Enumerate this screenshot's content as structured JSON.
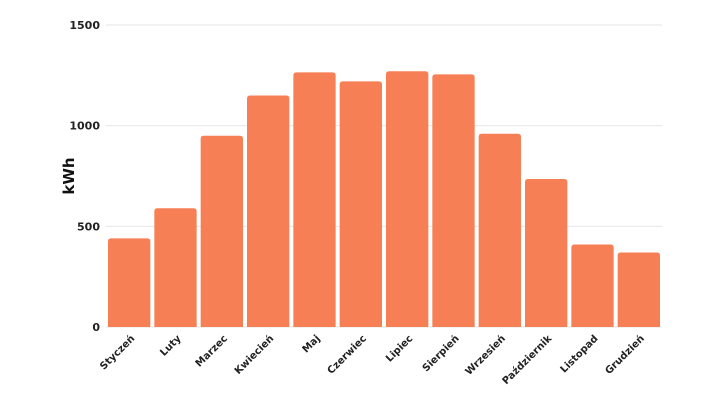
{
  "chart_data": {
    "type": "bar",
    "categories": [
      "Styczeń",
      "Luty",
      "Marzec",
      "Kwiecień",
      "Maj",
      "Czerwiec",
      "Lipiec",
      "Sierpień",
      "Wrzesień",
      "Październik",
      "Listopad",
      "Grudzień"
    ],
    "values": [
      440,
      590,
      950,
      1150,
      1265,
      1220,
      1270,
      1255,
      960,
      735,
      410,
      370
    ],
    "ylabel": "kWh",
    "ylim": [
      0,
      1500
    ],
    "yticks": [
      0,
      500,
      1000,
      1500
    ],
    "grid": true,
    "legend": "none",
    "bar_color": "#F77F56"
  }
}
